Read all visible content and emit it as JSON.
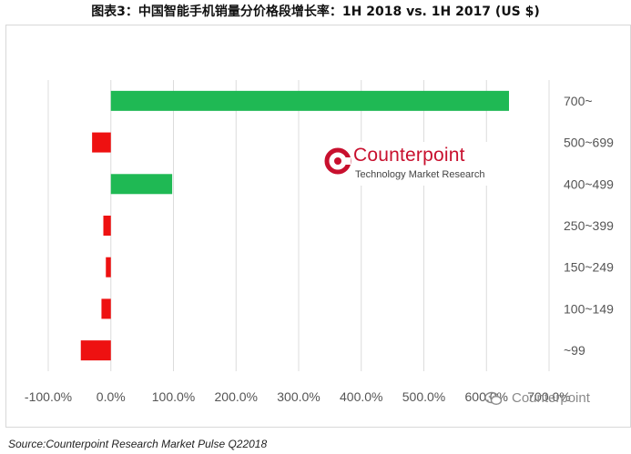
{
  "title": "图表3：中国智能手机销量分价格段增长率：1H 2018 vs. 1H 2017 (US $)",
  "logo": {
    "name": "Counterpoint",
    "tagline": "Technology Market Research"
  },
  "watermark": {
    "text": "Counterpoint"
  },
  "source": "Source:Counterpoint Research Market Pulse Q22018",
  "colors": {
    "positive": "#1fb954",
    "negative": "#ee1111",
    "grid": "#dcdcdc",
    "logo": "#c8102e"
  },
  "chart_data": {
    "type": "bar",
    "orientation": "horizontal",
    "title": "",
    "xlabel": "",
    "ylabel": "",
    "categories": [
      "700~",
      "500~699",
      "400~499",
      "250~399",
      "150~249",
      "100~149",
      "~99"
    ],
    "values": [
      636,
      -30,
      98,
      -12,
      -8,
      -15,
      -48
    ],
    "unit": "%",
    "xlim": [
      -100,
      700
    ],
    "xticks": [
      -100,
      0,
      100,
      200,
      300,
      400,
      500,
      600,
      700
    ],
    "xtick_labels": [
      "-100.0%",
      "0.0%",
      "100.0%",
      "200.0%",
      "300.0%",
      "400.0%",
      "500.0%",
      "600.0%",
      "700.0%"
    ],
    "grid": true,
    "legend": "none"
  }
}
